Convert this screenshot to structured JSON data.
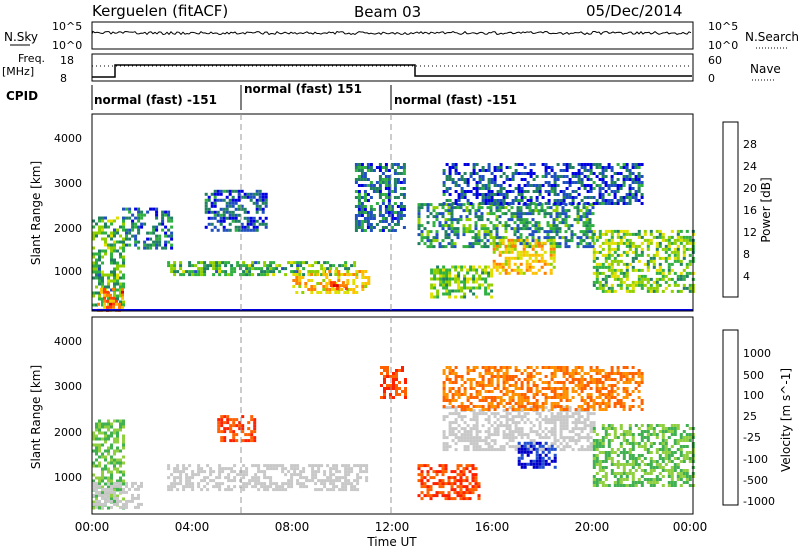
{
  "header": {
    "station": "Kerguelen (fitACF)",
    "beam": "Beam 03",
    "date": "05/Dec/2014"
  },
  "noise_panel": {
    "left_label": "N.Sky",
    "right_label": "N.Search",
    "left_ticks": [
      "10^5",
      "10^0"
    ],
    "right_ticks": [
      "10^5",
      "10^0"
    ]
  },
  "freq_panel": {
    "left_label_1": "Freq.",
    "left_label_2": "[MHz]",
    "right_label": "Nave",
    "left_ticks": [
      "18",
      "8"
    ],
    "right_ticks": [
      "60",
      "0"
    ]
  },
  "cpid": {
    "label": "CPID",
    "segments": [
      {
        "label": "normal (fast) -151",
        "start_hour": 0
      },
      {
        "label": "normal (fast) 151",
        "start_hour": 6
      },
      {
        "label": "normal (fast) -151",
        "start_hour": 12
      }
    ]
  },
  "x_axis": {
    "label": "Time UT",
    "ticks": [
      "00:00",
      "04:00",
      "08:00",
      "12:00",
      "16:00",
      "20:00",
      "00:00"
    ]
  },
  "y_axis": {
    "label": "Slant Range [km]",
    "ticks": [
      "1000",
      "2000",
      "3000",
      "4000"
    ]
  },
  "power_colorbar": {
    "label": "Power [dB]",
    "ticks": [
      "28",
      "24",
      "20",
      "16",
      "12",
      "8",
      "4"
    ],
    "colors": [
      "#e00000",
      "#ff4000",
      "#ff8000",
      "#ffc000",
      "#e0e000",
      "#90d000",
      "#30b040",
      "#208060",
      "#2050c0",
      "#0000e0"
    ]
  },
  "velocity_colorbar": {
    "label": "Velocity [m s^-1]",
    "ticks": [
      "1000",
      "500",
      "100",
      "25",
      "-25",
      "-100",
      "-500",
      "-1000"
    ],
    "colors": [
      "#0000c8",
      "#2050d0",
      "#20a080",
      "#40b050",
      "#90d040",
      "#c8c8c8",
      "#ff9000",
      "#ff6000",
      "#ff2000",
      "#e00000"
    ]
  },
  "chart_data": [
    {
      "type": "heatmap",
      "name": "power",
      "xlabel": "Time UT",
      "ylabel": "Slant Range [km]",
      "xlim": [
        0,
        24
      ],
      "ylim": [
        180,
        4600
      ],
      "colorbar_label": "Power [dB]",
      "regions": [
        {
          "t0": 0.0,
          "t1": 1.3,
          "r0": 300,
          "r1": 2300,
          "level": 12
        },
        {
          "t0": 0.2,
          "t1": 1.2,
          "r0": 200,
          "r1": 700,
          "level": 24
        },
        {
          "t0": 1.2,
          "t1": 3.2,
          "r0": 1600,
          "r1": 2500,
          "level": 8
        },
        {
          "t0": 3.0,
          "t1": 10.5,
          "r0": 1000,
          "r1": 1300,
          "level": 12
        },
        {
          "t0": 4.5,
          "t1": 7.0,
          "r0": 2000,
          "r1": 2900,
          "level": 6
        },
        {
          "t0": 8.0,
          "t1": 11.0,
          "r0": 600,
          "r1": 1100,
          "level": 20
        },
        {
          "t0": 9.5,
          "t1": 10.2,
          "r0": 650,
          "r1": 850,
          "level": 28
        },
        {
          "t0": 10.5,
          "t1": 12.5,
          "r0": 2000,
          "r1": 3500,
          "level": 8
        },
        {
          "t0": 13.0,
          "t1": 20.0,
          "r0": 1600,
          "r1": 2600,
          "level": 10
        },
        {
          "t0": 13.5,
          "t1": 16.0,
          "r0": 500,
          "r1": 1200,
          "level": 14
        },
        {
          "t0": 16.0,
          "t1": 18.5,
          "r0": 1000,
          "r1": 1800,
          "level": 20
        },
        {
          "t0": 20.0,
          "t1": 24.0,
          "r0": 600,
          "r1": 2000,
          "level": 14
        },
        {
          "t0": 14.0,
          "t1": 22.0,
          "r0": 2600,
          "r1": 3500,
          "level": 6
        }
      ]
    },
    {
      "type": "heatmap",
      "name": "velocity",
      "xlabel": "Time UT",
      "ylabel": "Slant Range [km]",
      "xlim": [
        0,
        24
      ],
      "ylim": [
        180,
        4600
      ],
      "colorbar_label": "Velocity [m s^-1]",
      "regions": [
        {
          "t0": 0.0,
          "t1": 1.3,
          "r0": 300,
          "r1": 2300,
          "level": 100
        },
        {
          "t0": 0.0,
          "t1": 2.0,
          "r0": 300,
          "r1": 900,
          "level": 0
        },
        {
          "t0": 3.0,
          "t1": 11.0,
          "r0": 700,
          "r1": 1300,
          "level": 0
        },
        {
          "t0": 5.0,
          "t1": 6.5,
          "r0": 1800,
          "r1": 2400,
          "level": -500
        },
        {
          "t0": 11.5,
          "t1": 12.5,
          "r0": 2800,
          "r1": 3500,
          "level": -500
        },
        {
          "t0": 13.0,
          "t1": 15.5,
          "r0": 500,
          "r1": 1300,
          "level": -500
        },
        {
          "t0": 14.0,
          "t1": 20.0,
          "r0": 1600,
          "r1": 2600,
          "level": 0
        },
        {
          "t0": 17.0,
          "t1": 18.5,
          "r0": 1200,
          "r1": 1800,
          "level": 1000
        },
        {
          "t0": 20.0,
          "t1": 24.0,
          "r0": 800,
          "r1": 2200,
          "level": 100
        },
        {
          "t0": 14.0,
          "t1": 22.0,
          "r0": 2500,
          "r1": 3500,
          "level": -100
        }
      ]
    }
  ]
}
